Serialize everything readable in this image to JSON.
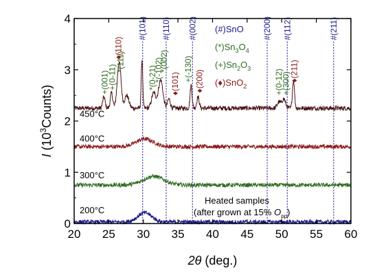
{
  "chart_data": {
    "type": "line",
    "xlabel_symbol": "2θ",
    "xlabel_unit": "(deg.)",
    "ylabel_symbol": "I",
    "ylabel_unit_prefix": "(10",
    "ylabel_unit_exp": "3",
    "ylabel_unit_suffix": "Counts)",
    "xlim": [
      20,
      60
    ],
    "ylim": [
      0,
      4
    ],
    "xticks": [
      "20",
      "25",
      "30",
      "35",
      "40",
      "45",
      "50",
      "55",
      "60"
    ],
    "yticks": [
      "0",
      "1",
      "2",
      "3",
      "4"
    ],
    "series": [
      {
        "label": "450°C",
        "color": "#4a1414",
        "baseline": 2.25,
        "noise": 0.045,
        "peaks": [
          {
            "x": 24.3,
            "h": 0.22,
            "w": 0.35
          },
          {
            "x": 25.4,
            "h": 0.3,
            "w": 0.35
          },
          {
            "x": 26.5,
            "h": 0.9,
            "w": 0.55
          },
          {
            "x": 27.6,
            "h": 0.25,
            "w": 0.6
          },
          {
            "x": 29.8,
            "h": 0.95,
            "w": 0.22
          },
          {
            "x": 31.5,
            "h": 0.3,
            "w": 0.6
          },
          {
            "x": 32.5,
            "h": 0.55,
            "w": 0.65
          },
          {
            "x": 33.7,
            "h": 0.18,
            "w": 0.4
          },
          {
            "x": 36.9,
            "h": 0.45,
            "w": 0.28
          },
          {
            "x": 37.9,
            "h": 0.22,
            "w": 0.35
          },
          {
            "x": 49.6,
            "h": 0.12,
            "w": 0.5
          },
          {
            "x": 50.3,
            "h": 0.18,
            "w": 0.5
          },
          {
            "x": 51.7,
            "h": 0.55,
            "w": 0.3
          }
        ]
      },
      {
        "label": "400°C",
        "color": "#8b1a1a",
        "baseline": 1.5,
        "noise": 0.04,
        "peaks": [
          {
            "x": 30.2,
            "h": 0.15,
            "w": 2.5
          }
        ]
      },
      {
        "label": "300°C",
        "color": "#2e6b1f",
        "baseline": 0.75,
        "noise": 0.04,
        "peaks": [
          {
            "x": 31.5,
            "h": 0.17,
            "w": 3.0
          }
        ]
      },
      {
        "label": "200°C",
        "color": "#1a1a8b",
        "baseline": 0.03,
        "noise": 0.04,
        "peaks": [
          {
            "x": 30.2,
            "h": 0.18,
            "w": 2.0
          }
        ]
      }
    ],
    "reference_lines": [
      {
        "x": 29.9,
        "label": "#(101)"
      },
      {
        "x": 33.3,
        "label": "#(110)"
      },
      {
        "x": 37.1,
        "label": "#(002)"
      },
      {
        "x": 47.9,
        "label": "#(200)"
      },
      {
        "x": 50.8,
        "label": "#(112)"
      },
      {
        "x": 57.5,
        "label": "#(211)"
      }
    ],
    "peak_annotations": [
      {
        "x": 24.4,
        "y": 2.52,
        "text": "+(001)",
        "color": "#2e6b1f"
      },
      {
        "x": 25.5,
        "y": 2.6,
        "text": "+(0-11)",
        "color": "#2e6b1f"
      },
      {
        "x": 26.7,
        "y": 2.95,
        "text": "*(111)",
        "color": "#2e6b1f"
      },
      {
        "x": 26.4,
        "y": 3.2,
        "text": "♦(110)",
        "color": "#8b1a1a"
      },
      {
        "x": 31.3,
        "y": 2.6,
        "text": "*(0-21)",
        "color": "#2e6b1f"
      },
      {
        "x": 32.2,
        "y": 2.75,
        "text": "*(-102)",
        "color": "#2e6b1f"
      },
      {
        "x": 33.0,
        "y": 2.95,
        "text": "*(002)",
        "color": "#2e6b1f"
      },
      {
        "x": 34.6,
        "y": 2.5,
        "text": "♦(101)",
        "color": "#8b1a1a"
      },
      {
        "x": 36.5,
        "y": 2.75,
        "text": "+(-130)",
        "color": "#2e6b1f"
      },
      {
        "x": 38.1,
        "y": 2.55,
        "text": "♦(200)",
        "color": "#8b1a1a"
      },
      {
        "x": 49.6,
        "y": 2.5,
        "text": "+(0-12)",
        "color": "#2e6b1f"
      },
      {
        "x": 50.6,
        "y": 2.5,
        "text": "+(300)",
        "color": "#2e6b1f"
      },
      {
        "x": 51.8,
        "y": 2.75,
        "text": "♦(211)",
        "color": "#8b1a1a"
      }
    ],
    "legend": [
      {
        "text": "(#)SnO",
        "color": "#1a1a8b"
      },
      {
        "text": "(*)Sn",
        "sub": "3",
        "tail": "O",
        "sub2": "4",
        "color": "#2e6b1f"
      },
      {
        "text": "(+)Sn",
        "sub": "2",
        "tail": "O",
        "sub2": "3",
        "color": "#2e6b1f"
      },
      {
        "text": "(♦)SnO",
        "sub": "2",
        "color": "#8b1a1a"
      }
    ],
    "legend_position": "top-right",
    "note_line1": "Heated samples",
    "note_line2_prefix": "(after grown at 15% ",
    "note_line2_symbol": "O",
    "note_line2_sub": "pp",
    "note_line2_suffix": ")"
  }
}
